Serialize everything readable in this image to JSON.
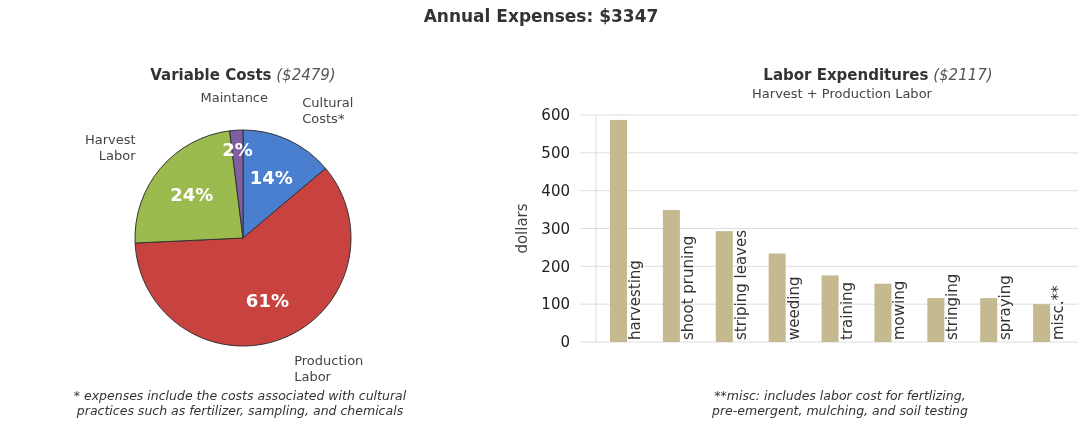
{
  "chart_data": [
    {
      "type": "pie",
      "title": "Variable Costs ($2479)",
      "categories": [
        "Cultural Costs*",
        "Production Labor",
        "Harvest Labor",
        "Maintance"
      ],
      "values": [
        14,
        61,
        24,
        2
      ],
      "colors": [
        "#4a7fcf",
        "#c8423f",
        "#9bbb4f",
        "#7f5fa0"
      ],
      "value_labels": [
        "14%",
        "61%",
        "24%",
        "2%"
      ],
      "annotations": [
        "Annual Expenses: $3347",
        "* expenses include the costs associated with cultural practices such as fertilizer, sampling, and chemicals"
      ]
    },
    {
      "type": "bar",
      "title": "Labor Expenditures ($2117)",
      "subtitle": "Harvest + Production Labor",
      "ylabel": "dollars",
      "categories": [
        "harvesting",
        "shoot pruning",
        "striping leaves",
        "weeding",
        "training",
        "mowing",
        "stringing",
        "spraying",
        "misc.**"
      ],
      "values": [
        587,
        349,
        293,
        234,
        176,
        154,
        116,
        116,
        100
      ],
      "color": "#c4b98f",
      "ylim": [
        0,
        600
      ],
      "yticks": [
        0,
        100,
        200,
        300,
        400,
        500,
        600
      ],
      "grid": "y",
      "annotations": [
        "**misc: includes labor cost for fertlizing, pre-emergent, mulching, and soil testing"
      ]
    }
  ]
}
